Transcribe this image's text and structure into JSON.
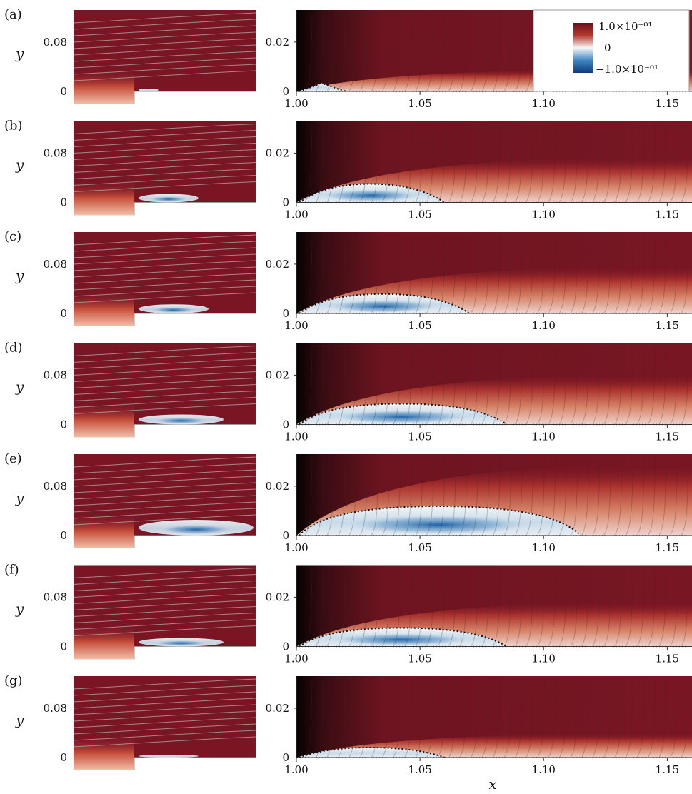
{
  "chart_data": {
    "type": "heatmap",
    "description_kind": "field",
    "x_label": "x",
    "left_panel_y_label": "y",
    "left_y_ticks": [
      "0",
      "0.08"
    ],
    "right_y_ticks": [
      "0",
      "0.02"
    ],
    "right_x_ticks": [
      "1.00",
      "1.05",
      "1.10",
      "1.15"
    ],
    "right_x_range": [
      1.0,
      1.16
    ],
    "right_y_range": [
      0,
      0.033
    ],
    "colorbar": {
      "max_label": "1.0×10⁻⁰¹",
      "mid_label": "0",
      "min_label": "−1.0×10⁻⁰¹",
      "range": [
        -0.1,
        0.1
      ],
      "colors": [
        "#0d3c78",
        "#2f7bbf",
        "#f6f7f8",
        "#d66a4e",
        "#6a0d1c"
      ]
    },
    "panels": [
      {
        "label": "(a)",
        "bubble_height": 0.08,
        "bubble_length": 0.02,
        "vmin": 0.0,
        "overlay_legend": true
      },
      {
        "label": "(b)",
        "bubble_height": 0.3,
        "bubble_length": 0.06,
        "vmin": -0.05
      },
      {
        "label": "(c)",
        "bubble_height": 0.32,
        "bubble_length": 0.07,
        "vmin": -0.06
      },
      {
        "label": "(d)",
        "bubble_height": 0.35,
        "bubble_length": 0.085,
        "vmin": -0.09
      },
      {
        "label": "(e)",
        "bubble_height": 0.55,
        "bubble_length": 0.115,
        "vmin": -0.09
      },
      {
        "label": "(f)",
        "bubble_height": 0.3,
        "bubble_length": 0.085,
        "vmin": -0.07
      },
      {
        "label": "(g)",
        "bubble_height": 0.1,
        "bubble_length": 0.06,
        "vmin": 0.0
      }
    ]
  }
}
